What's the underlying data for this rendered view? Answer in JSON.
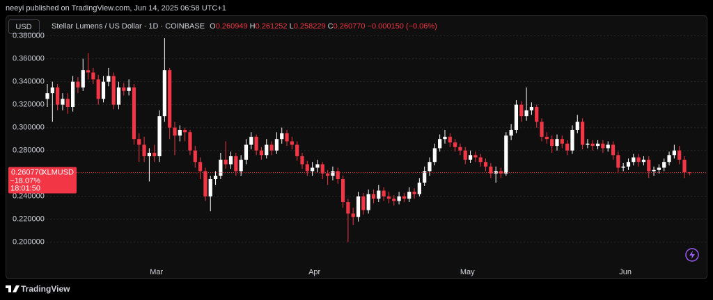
{
  "published": "neeyi published on TradingView.com, Jun 14, 2025 06:58 UTC+1",
  "brand": "TradingView",
  "chart_data": {
    "type": "candlestick",
    "currency_button": "USD",
    "title": "Stellar Lumens / US Dollar · 1D · COINBASE",
    "header": {
      "o_label": "O",
      "o": "0.260949",
      "h_label": "H",
      "h": "0.261252",
      "l_label": "L",
      "l": "0.258229",
      "c_label": "C",
      "c": "0.260770",
      "change": "−0.000150 (−0.06%)"
    },
    "price_tag": {
      "price": "0.260770",
      "symbol": "XLMUSD",
      "change": "−18.07%",
      "countdown": "18:01:50"
    },
    "up_color": "#ffffff",
    "down_color": "#f23645",
    "grid": true,
    "ylim": [
      0.169,
      0.384
    ],
    "yticks": [
      {
        "value": 0.2,
        "label": "0.200000"
      },
      {
        "value": 0.22,
        "label": "0.220000"
      },
      {
        "value": 0.24,
        "label": "0.240000"
      },
      {
        "value": 0.26,
        "label": "0.260000"
      },
      {
        "value": 0.28,
        "label": "0.280000"
      },
      {
        "value": 0.3,
        "label": "0.300000"
      },
      {
        "value": 0.32,
        "label": "0.320000"
      },
      {
        "value": 0.34,
        "label": "0.340000"
      },
      {
        "value": 0.36,
        "label": "0.360000"
      },
      {
        "value": 0.38,
        "label": "0.380000"
      }
    ],
    "xticks": [
      {
        "value": 21,
        "label": "Mar"
      },
      {
        "value": 52,
        "label": "Apr"
      },
      {
        "value": 82,
        "label": "May"
      },
      {
        "value": 113,
        "label": "Jun"
      }
    ],
    "ohlc": [
      [
        0.325,
        0.338,
        0.318,
        0.33
      ],
      [
        0.33,
        0.34,
        0.305,
        0.335
      ],
      [
        0.335,
        0.338,
        0.315,
        0.32
      ],
      [
        0.32,
        0.33,
        0.315,
        0.325
      ],
      [
        0.325,
        0.33,
        0.312,
        0.318
      ],
      [
        0.318,
        0.345,
        0.314,
        0.34
      ],
      [
        0.34,
        0.344,
        0.33,
        0.335
      ],
      [
        0.335,
        0.36,
        0.332,
        0.35
      ],
      [
        0.35,
        0.365,
        0.342,
        0.348
      ],
      [
        0.348,
        0.352,
        0.338,
        0.342
      ],
      [
        0.342,
        0.346,
        0.32,
        0.325
      ],
      [
        0.325,
        0.345,
        0.322,
        0.34
      ],
      [
        0.34,
        0.352,
        0.336,
        0.345
      ],
      [
        0.345,
        0.348,
        0.316,
        0.32
      ],
      [
        0.32,
        0.34,
        0.316,
        0.335
      ],
      [
        0.335,
        0.339,
        0.328,
        0.332
      ],
      [
        0.332,
        0.342,
        0.328,
        0.335
      ],
      [
        0.335,
        0.338,
        0.285,
        0.29
      ],
      [
        0.29,
        0.295,
        0.27,
        0.285
      ],
      [
        0.285,
        0.292,
        0.27,
        0.275
      ],
      [
        0.275,
        0.282,
        0.253,
        0.278
      ],
      [
        0.278,
        0.285,
        0.27,
        0.275
      ],
      [
        0.275,
        0.315,
        0.27,
        0.31
      ],
      [
        0.31,
        0.378,
        0.305,
        0.35
      ],
      [
        0.35,
        0.352,
        0.29,
        0.3
      ],
      [
        0.3,
        0.305,
        0.276,
        0.293
      ],
      [
        0.293,
        0.302,
        0.288,
        0.298
      ],
      [
        0.298,
        0.3,
        0.288,
        0.296
      ],
      [
        0.296,
        0.298,
        0.276,
        0.28
      ],
      [
        0.28,
        0.284,
        0.265,
        0.27
      ],
      [
        0.27,
        0.274,
        0.255,
        0.262
      ],
      [
        0.262,
        0.265,
        0.236,
        0.24
      ],
      [
        0.24,
        0.258,
        0.227,
        0.255
      ],
      [
        0.255,
        0.262,
        0.25,
        0.258
      ],
      [
        0.258,
        0.278,
        0.255,
        0.272
      ],
      [
        0.272,
        0.288,
        0.264,
        0.268
      ],
      [
        0.268,
        0.279,
        0.264,
        0.275
      ],
      [
        0.275,
        0.278,
        0.258,
        0.262
      ],
      [
        0.262,
        0.276,
        0.258,
        0.272
      ],
      [
        0.272,
        0.29,
        0.268,
        0.285
      ],
      [
        0.285,
        0.296,
        0.281,
        0.292
      ],
      [
        0.292,
        0.294,
        0.276,
        0.28
      ],
      [
        0.28,
        0.283,
        0.272,
        0.276
      ],
      [
        0.276,
        0.29,
        0.273,
        0.285
      ],
      [
        0.285,
        0.288,
        0.276,
        0.28
      ],
      [
        0.28,
        0.296,
        0.277,
        0.29
      ],
      [
        0.29,
        0.3,
        0.286,
        0.295
      ],
      [
        0.295,
        0.298,
        0.284,
        0.288
      ],
      [
        0.288,
        0.292,
        0.281,
        0.285
      ],
      [
        0.285,
        0.288,
        0.271,
        0.275
      ],
      [
        0.275,
        0.278,
        0.264,
        0.268
      ],
      [
        0.268,
        0.271,
        0.258,
        0.262
      ],
      [
        0.262,
        0.27,
        0.258,
        0.265
      ],
      [
        0.265,
        0.272,
        0.261,
        0.268
      ],
      [
        0.268,
        0.27,
        0.255,
        0.26
      ],
      [
        0.26,
        0.263,
        0.25,
        0.258
      ],
      [
        0.258,
        0.266,
        0.254,
        0.262
      ],
      [
        0.262,
        0.265,
        0.251,
        0.255
      ],
      [
        0.255,
        0.258,
        0.23,
        0.235
      ],
      [
        0.235,
        0.238,
        0.2,
        0.225
      ],
      [
        0.225,
        0.23,
        0.215,
        0.222
      ],
      [
        0.222,
        0.244,
        0.218,
        0.24
      ],
      [
        0.24,
        0.243,
        0.224,
        0.228
      ],
      [
        0.228,
        0.246,
        0.225,
        0.242
      ],
      [
        0.242,
        0.246,
        0.234,
        0.238
      ],
      [
        0.238,
        0.25,
        0.235,
        0.245
      ],
      [
        0.245,
        0.248,
        0.236,
        0.24
      ],
      [
        0.24,
        0.244,
        0.234,
        0.238
      ],
      [
        0.238,
        0.241,
        0.232,
        0.236
      ],
      [
        0.236,
        0.244,
        0.233,
        0.24
      ],
      [
        0.24,
        0.243,
        0.235,
        0.238
      ],
      [
        0.238,
        0.248,
        0.235,
        0.244
      ],
      [
        0.244,
        0.247,
        0.238,
        0.242
      ],
      [
        0.242,
        0.256,
        0.24,
        0.252
      ],
      [
        0.252,
        0.266,
        0.249,
        0.262
      ],
      [
        0.262,
        0.274,
        0.258,
        0.27
      ],
      [
        0.27,
        0.286,
        0.267,
        0.282
      ],
      [
        0.282,
        0.294,
        0.279,
        0.29
      ],
      [
        0.29,
        0.298,
        0.286,
        0.292
      ],
      [
        0.292,
        0.295,
        0.283,
        0.287
      ],
      [
        0.287,
        0.29,
        0.279,
        0.283
      ],
      [
        0.283,
        0.286,
        0.276,
        0.28
      ],
      [
        0.28,
        0.283,
        0.268,
        0.272
      ],
      [
        0.272,
        0.28,
        0.269,
        0.276
      ],
      [
        0.276,
        0.279,
        0.27,
        0.274
      ],
      [
        0.274,
        0.277,
        0.266,
        0.27
      ],
      [
        0.27,
        0.273,
        0.262,
        0.266
      ],
      [
        0.266,
        0.269,
        0.256,
        0.26
      ],
      [
        0.26,
        0.266,
        0.252,
        0.262
      ],
      [
        0.262,
        0.265,
        0.256,
        0.26
      ],
      [
        0.26,
        0.296,
        0.258,
        0.293
      ],
      [
        0.293,
        0.303,
        0.289,
        0.298
      ],
      [
        0.298,
        0.324,
        0.295,
        0.32
      ],
      [
        0.32,
        0.323,
        0.305,
        0.31
      ],
      [
        0.31,
        0.335,
        0.306,
        0.315
      ],
      [
        0.315,
        0.322,
        0.311,
        0.318
      ],
      [
        0.318,
        0.32,
        0.3,
        0.305
      ],
      [
        0.305,
        0.308,
        0.288,
        0.292
      ],
      [
        0.292,
        0.296,
        0.286,
        0.29
      ],
      [
        0.29,
        0.293,
        0.278,
        0.284
      ],
      [
        0.284,
        0.294,
        0.28,
        0.29
      ],
      [
        0.29,
        0.293,
        0.282,
        0.286
      ],
      [
        0.286,
        0.289,
        0.276,
        0.28
      ],
      [
        0.28,
        0.302,
        0.277,
        0.298
      ],
      [
        0.298,
        0.311,
        0.295,
        0.305
      ],
      [
        0.305,
        0.308,
        0.281,
        0.285
      ],
      [
        0.285,
        0.29,
        0.282,
        0.286
      ],
      [
        0.286,
        0.289,
        0.28,
        0.284
      ],
      [
        0.284,
        0.289,
        0.281,
        0.286
      ],
      [
        0.286,
        0.289,
        0.278,
        0.282
      ],
      [
        0.282,
        0.288,
        0.279,
        0.285
      ],
      [
        0.285,
        0.288,
        0.272,
        0.276
      ],
      [
        0.276,
        0.279,
        0.261,
        0.265
      ],
      [
        0.265,
        0.269,
        0.262,
        0.266
      ],
      [
        0.266,
        0.273,
        0.263,
        0.27
      ],
      [
        0.27,
        0.277,
        0.267,
        0.274
      ],
      [
        0.274,
        0.277,
        0.266,
        0.27
      ],
      [
        0.27,
        0.275,
        0.267,
        0.272
      ],
      [
        0.272,
        0.275,
        0.256,
        0.262
      ],
      [
        0.262,
        0.266,
        0.258,
        0.263
      ],
      [
        0.263,
        0.268,
        0.26,
        0.265
      ],
      [
        0.265,
        0.273,
        0.262,
        0.27
      ],
      [
        0.27,
        0.279,
        0.267,
        0.276
      ],
      [
        0.276,
        0.285,
        0.273,
        0.28
      ],
      [
        0.28,
        0.284,
        0.268,
        0.272
      ],
      [
        0.272,
        0.275,
        0.256,
        0.260949
      ],
      [
        0.260949,
        0.261252,
        0.258229,
        0.26077
      ]
    ]
  }
}
